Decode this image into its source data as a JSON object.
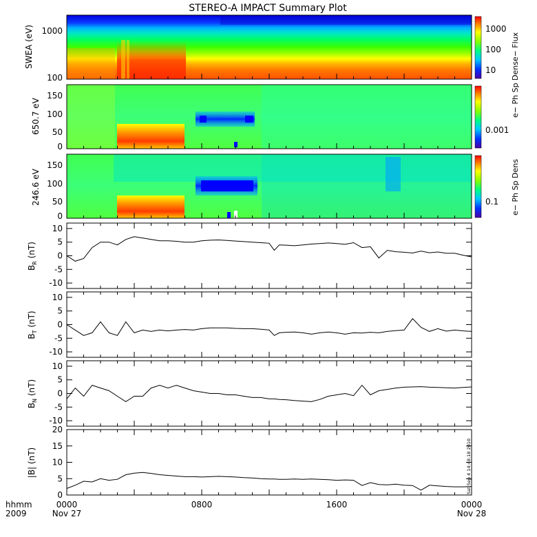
{
  "title": "STEREO-A IMPACT Summary Plot",
  "x_axis": {
    "row1_labels": [
      "0000",
      "0800",
      "1600",
      "0000"
    ],
    "row2_labels": [
      "Nov 27",
      "Nov 28"
    ],
    "unit_label": "hhmm",
    "year_label": "2009"
  },
  "stamp": "Sat Sep  4 14:48:18 2010",
  "colors": {
    "trace": "#000000",
    "frame": "#000000",
    "background": "#ffffff"
  },
  "chart_data": [
    {
      "type": "heatmap",
      "ylabel": "SWEA (eV)",
      "yscale": "log",
      "ylim": [
        100,
        2000
      ],
      "yticks": [
        "1000",
        "100"
      ],
      "colorbar": {
        "label": "e− Flux",
        "scale": "log",
        "ticks": [
          "1000",
          "100",
          "10"
        ]
      }
    },
    {
      "type": "heatmap",
      "ylabel": "650.7 eV",
      "ylim": [
        0,
        180
      ],
      "yticks": [
        "150",
        "100",
        "50",
        "0"
      ],
      "colorbar": {
        "label": "e− Ph Sp Dens",
        "scale": "log",
        "ticks": [
          "0.001"
        ]
      }
    },
    {
      "type": "heatmap",
      "ylabel": "246.6 eV",
      "ylim": [
        0,
        180
      ],
      "yticks": [
        "150",
        "100",
        "50",
        "0"
      ],
      "colorbar": {
        "label": "e− Ph Sp Dens",
        "scale": "log",
        "ticks": [
          "0.1"
        ]
      }
    },
    {
      "type": "line",
      "ylabel": "B_R (nT)",
      "ylim": [
        -12,
        12
      ],
      "yticks": [
        "10",
        "5",
        "0",
        "-5",
        "-10"
      ],
      "x_hours": [
        0,
        0.5,
        1,
        1.5,
        2,
        2.5,
        3,
        3.5,
        4,
        4.5,
        5,
        5.5,
        6,
        6.5,
        7,
        7.5,
        8,
        8.5,
        9,
        9.5,
        10,
        10.5,
        11,
        11.5,
        12,
        12.3,
        12.6,
        13,
        13.5,
        14,
        14.5,
        15,
        15.5,
        16,
        16.5,
        17,
        17.5,
        18,
        18.5,
        19,
        19.5,
        20,
        20.5,
        21,
        21.5,
        22,
        22.5,
        23,
        23.5,
        24
      ],
      "values": [
        0,
        -2,
        -1,
        3,
        5,
        5,
        4,
        6,
        7,
        6.5,
        6,
        5.5,
        5.5,
        5.3,
        5,
        5,
        5.5,
        5.7,
        5.8,
        5.6,
        5.4,
        5.2,
        5,
        4.8,
        4.6,
        2,
        4,
        3.9,
        3.7,
        4,
        4.3,
        4.5,
        4.7,
        4.5,
        4.2,
        4.8,
        3,
        3.3,
        -0.8,
        2,
        1.5,
        1.3,
        1,
        1.7,
        1.1,
        1.4,
        0.9,
        0.9,
        0.2,
        -0.4
      ]
    },
    {
      "type": "line",
      "ylabel": "B_T (nT)",
      "ylim": [
        -12,
        12
      ],
      "yticks": [
        "10",
        "5",
        "0",
        "-5",
        "-10"
      ],
      "x_hours": [
        0,
        0.5,
        1,
        1.5,
        2,
        2.5,
        3,
        3.5,
        4,
        4.5,
        5,
        5.5,
        6,
        6.5,
        7,
        7.5,
        8,
        8.5,
        9,
        9.5,
        10,
        10.5,
        11,
        11.5,
        12,
        12.3,
        12.6,
        13,
        13.5,
        14,
        14.5,
        15,
        15.5,
        16,
        16.5,
        17,
        17.5,
        18,
        18.5,
        19,
        19.5,
        20,
        20.5,
        21,
        21.5,
        22,
        22.5,
        23,
        23.5,
        24
      ],
      "values": [
        0,
        -2,
        -4,
        -3,
        1,
        -3,
        -4,
        1,
        -3,
        -2,
        -2.5,
        -2,
        -2.3,
        -2,
        -1.8,
        -2,
        -1.5,
        -1.2,
        -1.2,
        -1.2,
        -1.4,
        -1.5,
        -1.5,
        -1.7,
        -2,
        -4,
        -3,
        -2.8,
        -2.7,
        -3,
        -3.5,
        -3,
        -2.7,
        -3,
        -3.5,
        -3,
        -3.1,
        -2.8,
        -3,
        -2.5,
        -2.2,
        -2,
        2.2,
        -1,
        -2.5,
        -1.5,
        -2.4,
        -2,
        -2.3,
        -2.5
      ]
    },
    {
      "type": "line",
      "ylabel": "B_N (nT)",
      "ylim": [
        -12,
        12
      ],
      "yticks": [
        "10",
        "5",
        "0",
        "-5",
        "-10"
      ],
      "x_hours": [
        0,
        0.5,
        1,
        1.5,
        2,
        2.5,
        3,
        3.5,
        4,
        4.5,
        5,
        5.5,
        6,
        6.5,
        7,
        7.5,
        8,
        8.5,
        9,
        9.5,
        10,
        10.5,
        11,
        11.5,
        12,
        12.3,
        12.6,
        13,
        13.5,
        14,
        14.5,
        15,
        15.5,
        16,
        16.5,
        17,
        17.5,
        18,
        18.5,
        19,
        19.5,
        20,
        20.5,
        21,
        21.5,
        22,
        22.5,
        23,
        23.5,
        24
      ],
      "values": [
        -2,
        2,
        -1,
        3,
        2,
        1,
        -1,
        -3,
        -1,
        -1,
        2,
        3,
        2,
        3,
        2,
        1,
        0.5,
        0,
        0,
        -0.5,
        -0.5,
        -1,
        -1.5,
        -1.5,
        -2,
        -2,
        -2.2,
        -2.3,
        -2.6,
        -2.8,
        -3,
        -2.2,
        -1,
        -0.5,
        0,
        -0.8,
        3,
        -0.5,
        1,
        1.5,
        2,
        2.3,
        2.4,
        2.5,
        2.3,
        2.2,
        2.1,
        2,
        2.2,
        2.4
      ]
    },
    {
      "type": "line",
      "ylabel": "|B| (nT)",
      "ylim": [
        0,
        20
      ],
      "yticks": [
        "20",
        "15",
        "10",
        "5",
        "0"
      ],
      "x_hours": [
        0,
        0.5,
        1,
        1.5,
        2,
        2.5,
        3,
        3.5,
        4,
        4.5,
        5,
        5.5,
        6,
        6.5,
        7,
        7.5,
        8,
        8.5,
        9,
        9.5,
        10,
        10.5,
        11,
        11.5,
        12,
        12.3,
        12.6,
        13,
        13.5,
        14,
        14.5,
        15,
        15.5,
        16,
        16.5,
        17,
        17.5,
        18,
        18.5,
        19,
        19.5,
        20,
        20.5,
        21,
        21.5,
        22,
        22.5,
        23,
        23.5,
        24
      ],
      "values": [
        2,
        3,
        4.2,
        4,
        5,
        4.5,
        4.8,
        6.2,
        6.7,
        6.9,
        6.6,
        6.2,
        6,
        5.8,
        5.6,
        5.6,
        5.5,
        5.6,
        5.7,
        5.6,
        5.5,
        5.3,
        5.2,
        5,
        4.9,
        4.9,
        4.8,
        4.8,
        4.9,
        4.8,
        4.9,
        4.8,
        4.7,
        4.5,
        4.6,
        4.5,
        2.9,
        3.8,
        3.2,
        3.1,
        3.3,
        3,
        2.9,
        1.5,
        3,
        2.8,
        2.6,
        2.5,
        2.5,
        2.6
      ]
    }
  ]
}
